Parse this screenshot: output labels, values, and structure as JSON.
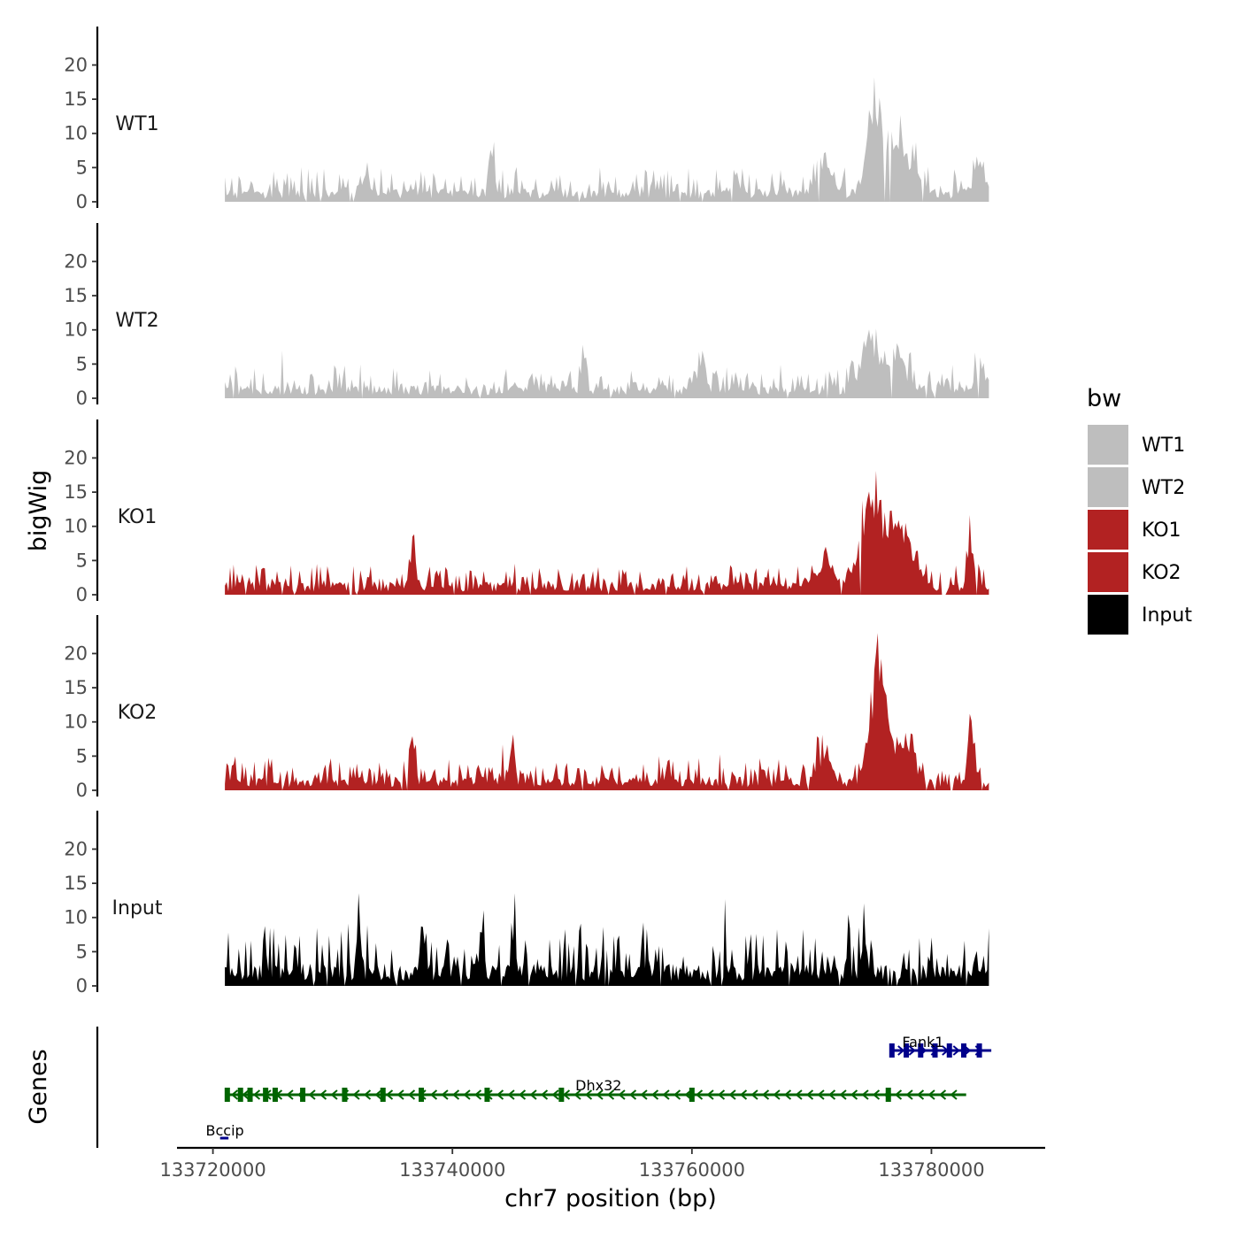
{
  "chart_data": {
    "type": "area",
    "title": "",
    "xlabel": "chr7 position (bp)",
    "ylabel": "bigWig",
    "genes_label": "Genes",
    "xlim": [
      133717000,
      133789500
    ],
    "region": [
      133721000,
      133784800
    ],
    "x_ticks": [
      133720000,
      133740000,
      133760000,
      133780000
    ],
    "x_tick_labels": [
      "133720000",
      "133740000",
      "133760000",
      "133780000"
    ],
    "ylim": [
      0,
      24
    ],
    "y_ticks": [
      0,
      5,
      10,
      15,
      20
    ],
    "y_tick_labels": [
      "0",
      "5",
      "10",
      "15",
      "20"
    ],
    "tracks": [
      {
        "name": "WT1",
        "color": "#bebebe",
        "baseline": 1.5,
        "noise": 3.4,
        "peaks": [
          [
            133732600,
            3.0,
            500
          ],
          [
            133743300,
            8.0,
            300
          ],
          [
            133771000,
            5.5,
            800
          ],
          [
            133775300,
            16.0,
            900
          ],
          [
            133777500,
            8.5,
            1300
          ],
          [
            133784000,
            6.0,
            500
          ]
        ]
      },
      {
        "name": "WT2",
        "color": "#bebebe",
        "baseline": 1.5,
        "noise": 3.2,
        "peaks": [
          [
            133751000,
            7.0,
            300
          ],
          [
            133760600,
            4.0,
            700
          ],
          [
            133775000,
            8.0,
            1100
          ],
          [
            133777300,
            6.5,
            900
          ],
          [
            133784000,
            4.5,
            600
          ]
        ]
      },
      {
        "name": "KO1",
        "color": "#b22222",
        "baseline": 1.5,
        "noise": 3.0,
        "peaks": [
          [
            133736700,
            7.0,
            300
          ],
          [
            133771000,
            5.0,
            900
          ],
          [
            133775000,
            14.0,
            1200
          ],
          [
            133777400,
            9.0,
            1400
          ],
          [
            133783300,
            9.0,
            350
          ]
        ]
      },
      {
        "name": "KO2",
        "color": "#b22222",
        "baseline": 1.5,
        "noise": 3.0,
        "peaks": [
          [
            133736700,
            6.0,
            300
          ],
          [
            133745000,
            7.0,
            300
          ],
          [
            133771000,
            4.5,
            900
          ],
          [
            133775500,
            17.5,
            900
          ],
          [
            133777500,
            7.0,
            1300
          ],
          [
            133783300,
            10.0,
            350
          ]
        ]
      },
      {
        "name": "Input",
        "color": "#000000",
        "baseline": 2.5,
        "noise": 6.5,
        "peaks": [
          [
            133732200,
            9.0,
            250
          ],
          [
            133737500,
            8.0,
            250
          ],
          [
            133742400,
            6.5,
            250
          ],
          [
            133774400,
            6.0,
            300
          ]
        ]
      }
    ],
    "legend": {
      "title": "bw",
      "entries": [
        {
          "label": "WT1",
          "color": "#bebebe"
        },
        {
          "label": "WT2",
          "color": "#bebebe"
        },
        {
          "label": "KO1",
          "color": "#b22222"
        },
        {
          "label": "KO2",
          "color": "#b22222"
        },
        {
          "label": "Input",
          "color": "#000000"
        }
      ]
    },
    "genes": [
      {
        "name": "Fank1",
        "start": 133776700,
        "end": 133785000,
        "strand": "+",
        "color": "#00008b",
        "row": 0,
        "exons": [
          133776700,
          133777900,
          133779100,
          133780300,
          133781500,
          133782700,
          133784000
        ]
      },
      {
        "name": "Dhx32",
        "start": 133721100,
        "end": 133782900,
        "strand": "-",
        "color": "#006400",
        "row": 1,
        "exons": [
          133721200,
          133722300,
          133723100,
          133724400,
          133725200,
          133727500,
          133731000,
          133734200,
          133737400,
          133742900,
          133749100,
          133760000,
          133776400
        ]
      },
      {
        "name": "Bccip",
        "start": 133720600,
        "end": 133721300,
        "strand": "+",
        "color": "#00008b",
        "row": 2,
        "exons": []
      }
    ]
  }
}
